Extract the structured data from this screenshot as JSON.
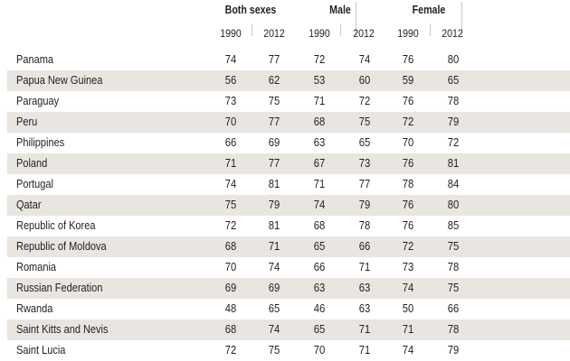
{
  "header": {
    "groups": [
      "Both sexes",
      "Male",
      "Female"
    ],
    "years": [
      "1990",
      "2012",
      "1990",
      "2012",
      "1990",
      "2012"
    ]
  },
  "rows": [
    {
      "country": "Panama",
      "values": [
        "74",
        "77",
        "72",
        "74",
        "76",
        "80"
      ]
    },
    {
      "country": "Papua New Guinea",
      "values": [
        "56",
        "62",
        "53",
        "60",
        "59",
        "65"
      ]
    },
    {
      "country": "Paraguay",
      "values": [
        "73",
        "75",
        "71",
        "72",
        "76",
        "78"
      ]
    },
    {
      "country": "Peru",
      "values": [
        "70",
        "77",
        "68",
        "75",
        "72",
        "79"
      ]
    },
    {
      "country": "Philippines",
      "values": [
        "66",
        "69",
        "63",
        "65",
        "70",
        "72"
      ]
    },
    {
      "country": "Poland",
      "values": [
        "71",
        "77",
        "67",
        "73",
        "76",
        "81"
      ]
    },
    {
      "country": "Portugal",
      "values": [
        "74",
        "81",
        "71",
        "77",
        "78",
        "84"
      ]
    },
    {
      "country": "Qatar",
      "values": [
        "75",
        "79",
        "74",
        "79",
        "76",
        "80"
      ]
    },
    {
      "country": "Republic of Korea",
      "values": [
        "72",
        "81",
        "68",
        "78",
        "76",
        "85"
      ]
    },
    {
      "country": "Republic of Moldova",
      "values": [
        "68",
        "71",
        "65",
        "66",
        "72",
        "75"
      ]
    },
    {
      "country": "Romania",
      "values": [
        "70",
        "74",
        "66",
        "71",
        "73",
        "78"
      ]
    },
    {
      "country": "Russian Federation",
      "values": [
        "69",
        "69",
        "63",
        "63",
        "74",
        "75"
      ]
    },
    {
      "country": "Rwanda",
      "values": [
        "48",
        "65",
        "46",
        "63",
        "50",
        "66"
      ]
    },
    {
      "country": "Saint Kitts and Nevis",
      "values": [
        "68",
        "74",
        "65",
        "71",
        "71",
        "78"
      ]
    },
    {
      "country": "Saint Lucia",
      "values": [
        "72",
        "75",
        "70",
        "71",
        "74",
        "79"
      ]
    }
  ],
  "colors": {
    "row_shade": "#e9e5e0",
    "text": "#231f20"
  }
}
